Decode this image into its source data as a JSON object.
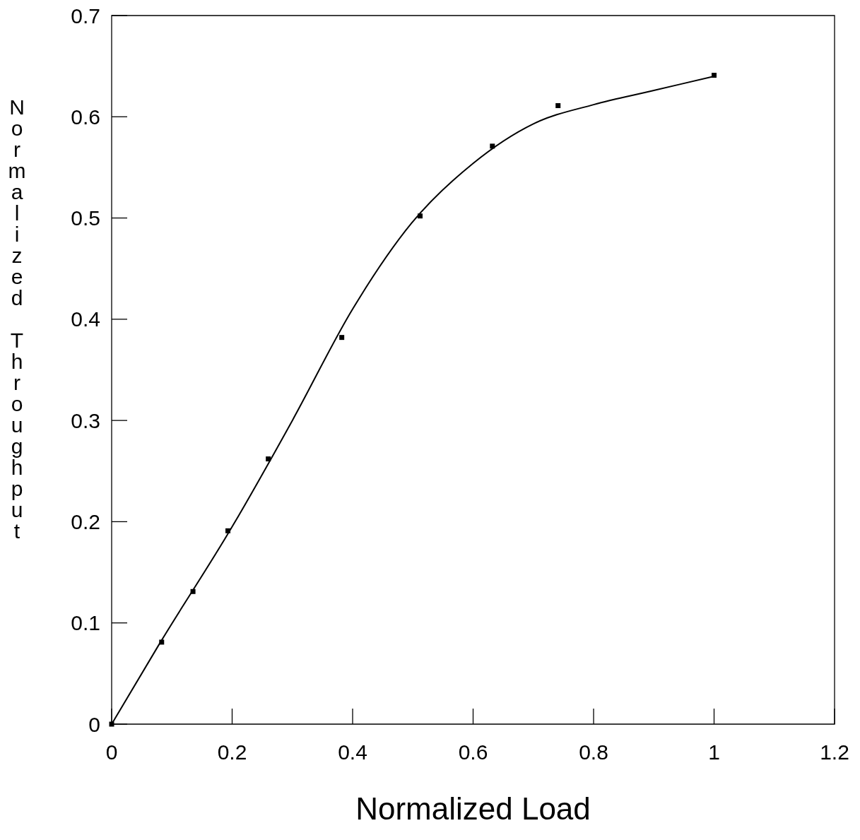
{
  "chart_data": {
    "type": "scatter",
    "xlabel": "Normalized Load",
    "ylabel": "Normalized Throughput",
    "xlim": [
      0,
      1.2
    ],
    "ylim": [
      0,
      0.7
    ],
    "xticks": [
      0,
      0.2,
      0.4,
      0.6,
      0.8,
      1,
      1.2
    ],
    "yticks": [
      0,
      0.1,
      0.2,
      0.3,
      0.4,
      0.5,
      0.6,
      0.7
    ],
    "grid": false,
    "series": [
      {
        "marker": "square",
        "color": "#000000",
        "x": [
          0,
          0.083,
          0.135,
          0.193,
          0.26,
          0.382,
          0.512,
          0.632,
          0.741,
          1.0
        ],
        "values": [
          0,
          0.081,
          0.131,
          0.191,
          0.262,
          0.382,
          0.502,
          0.571,
          0.611,
          0.641
        ]
      },
      {
        "type": "line",
        "marker": "none",
        "line_style": "solid",
        "color": "#000000",
        "x": [
          0,
          0.08,
          0.2,
          0.3,
          0.4,
          0.498,
          0.6,
          0.7,
          0.8,
          0.9,
          1.0
        ],
        "values": [
          0,
          0.08,
          0.195,
          0.3,
          0.41,
          0.495,
          0.554,
          0.593,
          0.612,
          0.626,
          0.64
        ]
      }
    ]
  }
}
